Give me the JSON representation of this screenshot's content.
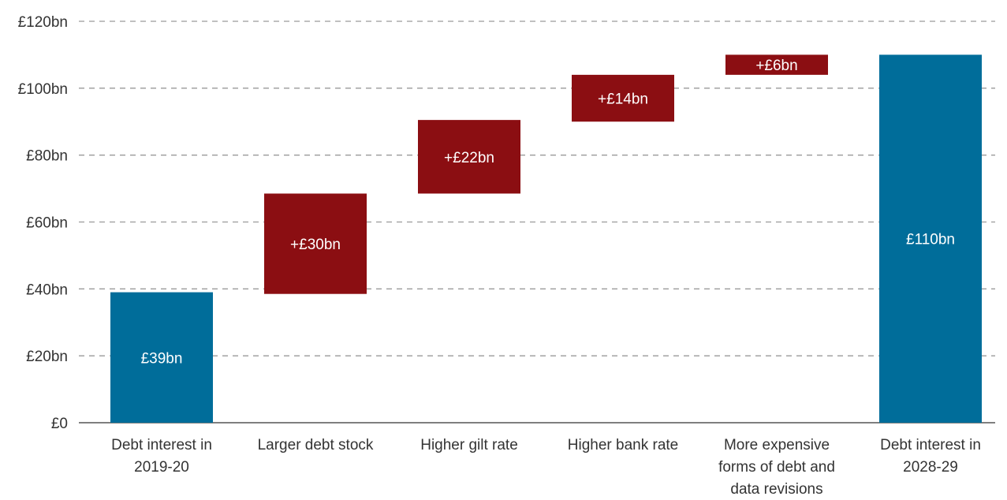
{
  "chart_data": {
    "type": "bar",
    "subtype": "waterfall",
    "categories": [
      [
        "Debt interest in",
        "2019-20"
      ],
      [
        "Larger debt stock"
      ],
      [
        "Higher gilt rate"
      ],
      [
        "Higher bank rate"
      ],
      [
        "More expensive",
        "forms of debt and",
        "data revisions"
      ],
      [
        "Debt interest in",
        "2028-29"
      ]
    ],
    "bars": [
      {
        "kind": "total",
        "base": 0,
        "value": 39,
        "label": "£39bn"
      },
      {
        "kind": "increase",
        "base": 38.5,
        "value": 30,
        "label": "+£30bn"
      },
      {
        "kind": "increase",
        "base": 68.5,
        "value": 22,
        "label": "+£22bn"
      },
      {
        "kind": "increase",
        "base": 90,
        "value": 14,
        "label": "+£14bn"
      },
      {
        "kind": "increase",
        "base": 104,
        "value": 6,
        "label": "+£6bn"
      },
      {
        "kind": "total",
        "base": 0,
        "value": 110,
        "label": "£110bn"
      }
    ],
    "yticks": [
      {
        "value": 0,
        "label": "£0"
      },
      {
        "value": 20,
        "label": "£20bn"
      },
      {
        "value": 40,
        "label": "£40bn"
      },
      {
        "value": 60,
        "label": "£60bn"
      },
      {
        "value": 80,
        "label": "£80bn"
      },
      {
        "value": 100,
        "label": "£100bn"
      },
      {
        "value": 120,
        "label": "£120bn"
      }
    ],
    "ylim": [
      0,
      120
    ],
    "grid": true,
    "title": "",
    "xlabel": "",
    "ylabel": "",
    "colors": {
      "total": "#006d9a",
      "increase": "#8b0e12"
    }
  }
}
